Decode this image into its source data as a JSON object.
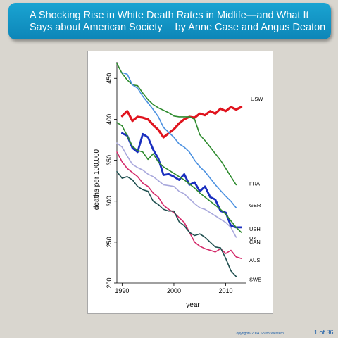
{
  "slide": {
    "title": "A Shocking Rise in White Death Rates in Midlife—and What It Says about American Society",
    "author": "by Anne Case and Angus Deaton",
    "copyright": "Copyright©2004  South-Western",
    "page": "1 of 36"
  },
  "chart_data": {
    "type": "line",
    "title": "",
    "xlabel": "year",
    "ylabel": "deaths per 100,000",
    "xlim": [
      1989,
      2014
    ],
    "ylim": [
      200,
      470
    ],
    "x_ticks": [
      1990,
      2000,
      2010
    ],
    "y_ticks": [
      200,
      250,
      300,
      350,
      400,
      450
    ],
    "grid": false,
    "legend": "direct labels at line ends (right)",
    "series": [
      {
        "name": "USW",
        "color": "#e0141e",
        "width": 3.2,
        "points": [
          [
            1990,
            404
          ],
          [
            1991,
            410
          ],
          [
            1992,
            398
          ],
          [
            1993,
            403
          ],
          [
            1994,
            402
          ],
          [
            1995,
            400
          ],
          [
            1996,
            393
          ],
          [
            1997,
            387
          ],
          [
            1998,
            378
          ],
          [
            1999,
            383
          ],
          [
            2000,
            388
          ],
          [
            2001,
            395
          ],
          [
            2002,
            400
          ],
          [
            2003,
            403
          ],
          [
            2004,
            402
          ],
          [
            2005,
            407
          ],
          [
            2006,
            405
          ],
          [
            2007,
            410
          ],
          [
            2008,
            407
          ],
          [
            2009,
            413
          ],
          [
            2010,
            410
          ],
          [
            2011,
            415
          ],
          [
            2012,
            412
          ],
          [
            2013,
            415
          ]
        ]
      },
      {
        "name": "FRA",
        "color": "#2e8b2e",
        "width": 1.6,
        "points": [
          [
            1989,
            468
          ],
          [
            1990,
            456
          ],
          [
            1991,
            448
          ],
          [
            1992,
            442
          ],
          [
            1993,
            441
          ],
          [
            1994,
            432
          ],
          [
            1995,
            424
          ],
          [
            1996,
            418
          ],
          [
            1997,
            414
          ],
          [
            1998,
            411
          ],
          [
            1999,
            408
          ],
          [
            2000,
            404
          ],
          [
            2001,
            403
          ],
          [
            2002,
            403
          ],
          [
            2003,
            403
          ],
          [
            2004,
            400
          ],
          [
            2005,
            381
          ],
          [
            2006,
            374
          ],
          [
            2007,
            366
          ],
          [
            2008,
            358
          ],
          [
            2009,
            350
          ],
          [
            2010,
            340
          ],
          [
            2011,
            330
          ],
          [
            2012,
            320
          ]
        ]
      },
      {
        "name": "GER",
        "color": "#4a90e0",
        "width": 1.6,
        "points": [
          [
            1990,
            457
          ],
          [
            1991,
            455
          ],
          [
            1992,
            442
          ],
          [
            1993,
            438
          ],
          [
            1994,
            428
          ],
          [
            1995,
            420
          ],
          [
            1996,
            412
          ],
          [
            1997,
            403
          ],
          [
            1998,
            390
          ],
          [
            1999,
            384
          ],
          [
            2000,
            378
          ],
          [
            2001,
            370
          ],
          [
            2002,
            366
          ],
          [
            2003,
            360
          ],
          [
            2004,
            350
          ],
          [
            2005,
            342
          ],
          [
            2006,
            336
          ],
          [
            2007,
            328
          ],
          [
            2008,
            320
          ],
          [
            2009,
            313
          ],
          [
            2010,
            306
          ],
          [
            2011,
            300
          ],
          [
            2012,
            292
          ]
        ]
      },
      {
        "name": "USH",
        "color": "#1a2fbf",
        "width": 2.8,
        "points": [
          [
            1990,
            383
          ],
          [
            1991,
            380
          ],
          [
            1992,
            365
          ],
          [
            1993,
            360
          ],
          [
            1994,
            382
          ],
          [
            1995,
            378
          ],
          [
            1996,
            363
          ],
          [
            1997,
            352
          ],
          [
            1998,
            332
          ],
          [
            1999,
            333
          ],
          [
            2000,
            330
          ],
          [
            2001,
            326
          ],
          [
            2002,
            333
          ],
          [
            2003,
            320
          ],
          [
            2004,
            323
          ],
          [
            2005,
            312
          ],
          [
            2006,
            318
          ],
          [
            2007,
            305
          ],
          [
            2008,
            302
          ],
          [
            2009,
            288
          ],
          [
            2010,
            286
          ],
          [
            2011,
            270
          ],
          [
            2012,
            268
          ],
          [
            2013,
            268
          ]
        ]
      },
      {
        "name": "UK",
        "color": "#2e8b2e",
        "width": 1.6,
        "points": [
          [
            1989,
            396
          ],
          [
            1990,
            392
          ],
          [
            1991,
            380
          ],
          [
            1992,
            367
          ],
          [
            1993,
            362
          ],
          [
            1994,
            360
          ],
          [
            1995,
            351
          ],
          [
            1996,
            358
          ],
          [
            1997,
            348
          ],
          [
            1998,
            342
          ],
          [
            1999,
            338
          ],
          [
            2000,
            334
          ],
          [
            2001,
            330
          ],
          [
            2002,
            326
          ],
          [
            2003,
            321
          ],
          [
            2004,
            316
          ],
          [
            2005,
            310
          ],
          [
            2006,
            305
          ],
          [
            2007,
            300
          ],
          [
            2008,
            295
          ],
          [
            2009,
            290
          ],
          [
            2010,
            284
          ],
          [
            2011,
            276
          ],
          [
            2012,
            268
          ],
          [
            2013,
            262
          ]
        ]
      },
      {
        "name": "CAN",
        "color": "#a8a8dc",
        "width": 1.6,
        "points": [
          [
            1989,
            371
          ],
          [
            1990,
            366
          ],
          [
            1991,
            355
          ],
          [
            1992,
            345
          ],
          [
            1993,
            341
          ],
          [
            1994,
            338
          ],
          [
            1995,
            333
          ],
          [
            1996,
            330
          ],
          [
            1997,
            325
          ],
          [
            1998,
            320
          ],
          [
            1999,
            319
          ],
          [
            2000,
            318
          ],
          [
            2001,
            312
          ],
          [
            2002,
            309
          ],
          [
            2003,
            303
          ],
          [
            2004,
            297
          ],
          [
            2005,
            292
          ],
          [
            2006,
            290
          ],
          [
            2007,
            286
          ],
          [
            2008,
            282
          ],
          [
            2009,
            278
          ],
          [
            2010,
            274
          ],
          [
            2011,
            268
          ],
          [
            2012,
            256
          ]
        ]
      },
      {
        "name": "AUS",
        "color": "#d42a6a",
        "width": 1.6,
        "points": [
          [
            1989,
            360
          ],
          [
            1990,
            348
          ],
          [
            1991,
            340
          ],
          [
            1992,
            335
          ],
          [
            1993,
            330
          ],
          [
            1994,
            322
          ],
          [
            1995,
            318
          ],
          [
            1996,
            310
          ],
          [
            1997,
            305
          ],
          [
            1998,
            295
          ],
          [
            1999,
            290
          ],
          [
            2000,
            286
          ],
          [
            2001,
            280
          ],
          [
            2002,
            274
          ],
          [
            2003,
            262
          ],
          [
            2004,
            250
          ],
          [
            2005,
            245
          ],
          [
            2006,
            242
          ],
          [
            2007,
            240
          ],
          [
            2008,
            238
          ],
          [
            2009,
            242
          ],
          [
            2010,
            236
          ],
          [
            2011,
            240
          ],
          [
            2012,
            232
          ],
          [
            2013,
            230
          ]
        ]
      },
      {
        "name": "SWE",
        "color": "#1f4f4f",
        "width": 1.6,
        "points": [
          [
            1989,
            336
          ],
          [
            1990,
            328
          ],
          [
            1991,
            330
          ],
          [
            1992,
            326
          ],
          [
            1993,
            318
          ],
          [
            1994,
            314
          ],
          [
            1995,
            312
          ],
          [
            1996,
            300
          ],
          [
            1997,
            296
          ],
          [
            1998,
            290
          ],
          [
            1999,
            288
          ],
          [
            2000,
            288
          ],
          [
            2001,
            275
          ],
          [
            2002,
            270
          ],
          [
            2003,
            262
          ],
          [
            2004,
            258
          ],
          [
            2005,
            260
          ],
          [
            2006,
            256
          ],
          [
            2007,
            250
          ],
          [
            2008,
            244
          ],
          [
            2009,
            243
          ],
          [
            2010,
            230
          ],
          [
            2011,
            215
          ],
          [
            2012,
            208
          ]
        ]
      }
    ]
  }
}
